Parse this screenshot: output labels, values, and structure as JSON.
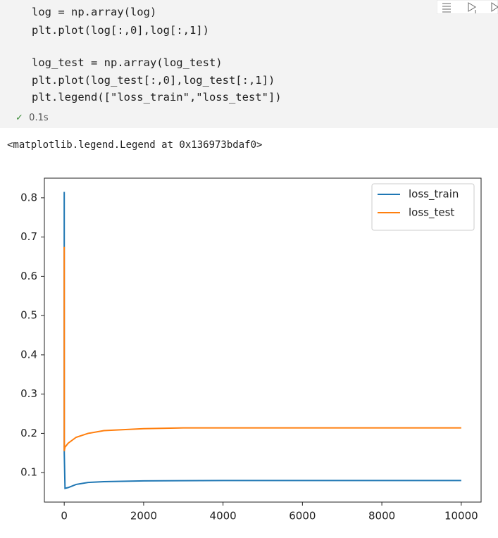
{
  "cell": {
    "code": [
      "log = np.array(log)",
      "plt.plot(log[:,0],log[:,1])",
      "log_test = np.array(log_test)",
      "plt.plot(log_test[:,0],log_test[:,1])",
      "plt.legend([\"loss_train\",\"loss_test\"])"
    ],
    "status": "0.1s",
    "output": "<matplotlib.legend.Legend at 0x136973bdaf0>"
  },
  "chart_data": {
    "type": "line",
    "series": [
      {
        "name": "loss_train",
        "color": "#1f77b4",
        "x": [
          0,
          1,
          20,
          100,
          300,
          600,
          1000,
          2000,
          4000,
          6000,
          8000,
          10000
        ],
        "values": [
          0.815,
          0.15,
          0.06,
          0.062,
          0.07,
          0.075,
          0.077,
          0.079,
          0.08,
          0.08,
          0.08,
          0.08
        ]
      },
      {
        "name": "loss_test",
        "color": "#ff7f0e",
        "x": [
          0,
          1,
          20,
          100,
          300,
          600,
          1000,
          2000,
          3000,
          4000,
          6000,
          10000
        ],
        "values": [
          0.675,
          0.155,
          0.165,
          0.175,
          0.19,
          0.2,
          0.207,
          0.212,
          0.214,
          0.214,
          0.214,
          0.214
        ]
      }
    ],
    "xlim": [
      -500,
      10500
    ],
    "xticks": [
      0,
      2000,
      4000,
      6000,
      8000,
      10000
    ],
    "ylim": [
      0.025,
      0.85
    ],
    "yticks": [
      0.1,
      0.2,
      0.3,
      0.4,
      0.5,
      0.6,
      0.7,
      0.8
    ],
    "legend": "upper right"
  }
}
